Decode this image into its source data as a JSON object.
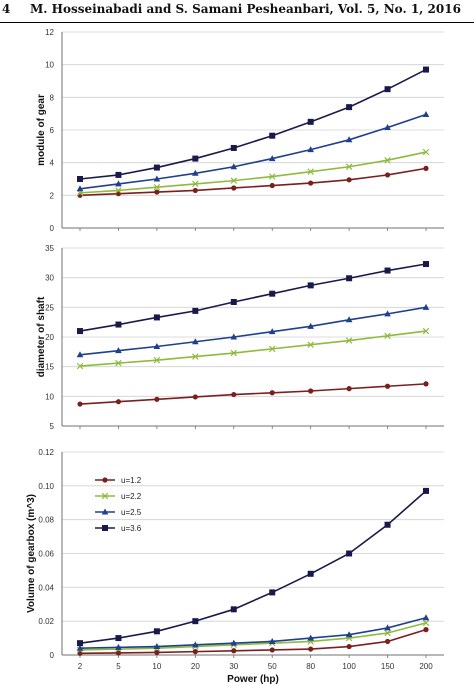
{
  "page_header": {
    "page_number": "4",
    "running_title": "M. Hosseinabadi and S. Samani Pesheanbari, Vol. 5, No. 1, 2016"
  },
  "colors": {
    "u1.2": "#7b1e1e",
    "u2.2": "#8fba3c",
    "u2.5": "#1f3f8f",
    "u3.6": "#1a1a4a",
    "grid": "#d0d0d0",
    "axis": "#707070"
  },
  "chart_data": [
    {
      "type": "line",
      "ylabel": "module of gear",
      "xlabel": "",
      "categories": [
        "2",
        "5",
        "10",
        "20",
        "30",
        "50",
        "80",
        "100",
        "150",
        "200"
      ],
      "ylim": [
        0,
        12
      ],
      "yticks": [
        "0",
        "2",
        "4",
        "6",
        "8",
        "10",
        "12"
      ],
      "grid": "horizontal",
      "series": [
        {
          "name": "u=1.2",
          "marker": "circle",
          "color": "#7b1e1e",
          "values": [
            2.0,
            2.1,
            2.2,
            2.3,
            2.45,
            2.6,
            2.75,
            2.95,
            3.25,
            3.65
          ]
        },
        {
          "name": "u=2.2",
          "marker": "x",
          "color": "#8fba3c",
          "values": [
            2.15,
            2.3,
            2.5,
            2.7,
            2.9,
            3.15,
            3.45,
            3.75,
            4.15,
            4.65
          ]
        },
        {
          "name": "u=2.5",
          "marker": "triangle",
          "color": "#1f3f8f",
          "values": [
            2.4,
            2.7,
            3.0,
            3.35,
            3.75,
            4.25,
            4.8,
            5.4,
            6.15,
            6.95
          ]
        },
        {
          "name": "u=3.6",
          "marker": "square",
          "color": "#1a1a4a",
          "values": [
            3.0,
            3.25,
            3.7,
            4.25,
            4.9,
            5.65,
            6.5,
            7.4,
            8.5,
            9.7
          ]
        }
      ]
    },
    {
      "type": "line",
      "ylabel": "diameter of shaft",
      "xlabel": "",
      "categories": [
        "2",
        "5",
        "10",
        "20",
        "30",
        "50",
        "80",
        "100",
        "150",
        "200"
      ],
      "ylim": [
        5,
        35
      ],
      "yticks": [
        "5",
        "10",
        "15",
        "20",
        "25",
        "30",
        "35"
      ],
      "grid": "horizontal",
      "series": [
        {
          "name": "u=1.2",
          "marker": "circle",
          "color": "#7b1e1e",
          "values": [
            8.7,
            9.1,
            9.5,
            9.9,
            10.3,
            10.6,
            10.9,
            11.3,
            11.7,
            12.1
          ]
        },
        {
          "name": "u=2.2",
          "marker": "x",
          "color": "#8fba3c",
          "values": [
            15.1,
            15.6,
            16.1,
            16.7,
            17.3,
            18.0,
            18.7,
            19.4,
            20.2,
            21.0
          ]
        },
        {
          "name": "u=2.5",
          "marker": "triangle",
          "color": "#1f3f8f",
          "values": [
            17.0,
            17.7,
            18.4,
            19.2,
            20.0,
            20.9,
            21.8,
            22.9,
            23.9,
            25.0
          ]
        },
        {
          "name": "u=3.6",
          "marker": "square",
          "color": "#1a1a4a",
          "values": [
            21.0,
            22.1,
            23.3,
            24.4,
            25.9,
            27.3,
            28.7,
            29.9,
            31.2,
            32.3
          ]
        }
      ]
    },
    {
      "type": "line",
      "ylabel": "Volume of gearbox (m^3)",
      "xlabel": "Power (hp)",
      "categories": [
        "2",
        "5",
        "10",
        "20",
        "30",
        "50",
        "80",
        "100",
        "150",
        "200"
      ],
      "ylim": [
        0,
        0.12
      ],
      "yticks": [
        "0",
        "0.02",
        "0.04",
        "0.06",
        "0.08",
        "0.10",
        "0.12"
      ],
      "grid": "horizontal",
      "legend_position": "top-left",
      "series": [
        {
          "name": "u=1.2",
          "marker": "circle",
          "color": "#7b1e1e",
          "values": [
            0.001,
            0.0012,
            0.0015,
            0.002,
            0.0025,
            0.003,
            0.0035,
            0.005,
            0.008,
            0.015
          ]
        },
        {
          "name": "u=2.2",
          "marker": "x",
          "color": "#8fba3c",
          "values": [
            0.003,
            0.0035,
            0.004,
            0.005,
            0.006,
            0.007,
            0.008,
            0.01,
            0.013,
            0.019
          ]
        },
        {
          "name": "u=2.5",
          "marker": "triangle",
          "color": "#1f3f8f",
          "values": [
            0.004,
            0.0045,
            0.005,
            0.006,
            0.007,
            0.008,
            0.01,
            0.012,
            0.016,
            0.022
          ]
        },
        {
          "name": "u=3.6",
          "marker": "square",
          "color": "#1a1a4a",
          "values": [
            0.007,
            0.01,
            0.014,
            0.02,
            0.027,
            0.037,
            0.048,
            0.06,
            0.077,
            0.097
          ]
        }
      ]
    }
  ]
}
